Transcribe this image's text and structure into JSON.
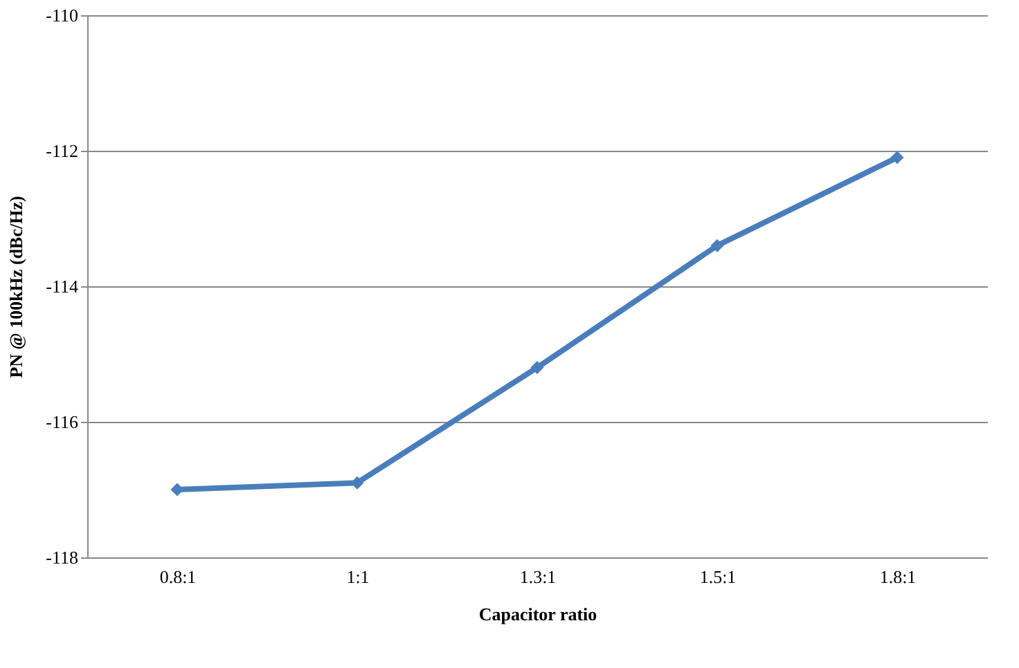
{
  "chart_data": {
    "type": "line",
    "xlabel": "Capacitor ratio",
    "ylabel": "PN @ 100kHz (dBc/Hz)",
    "categories": [
      "0.8:1",
      "1:1",
      "1.3:1",
      "1.5:1",
      "1.8:1"
    ],
    "series": [
      {
        "color": "#4a7ebb",
        "values": [
          -117.0,
          -116.9,
          -115.2,
          -113.4,
          -112.1
        ]
      }
    ],
    "ylim": [
      -118,
      -110
    ],
    "yticks": [
      -118,
      -116,
      -114,
      -112,
      -110
    ],
    "grid": "y",
    "marker": "diamond",
    "line_style": "solid"
  }
}
